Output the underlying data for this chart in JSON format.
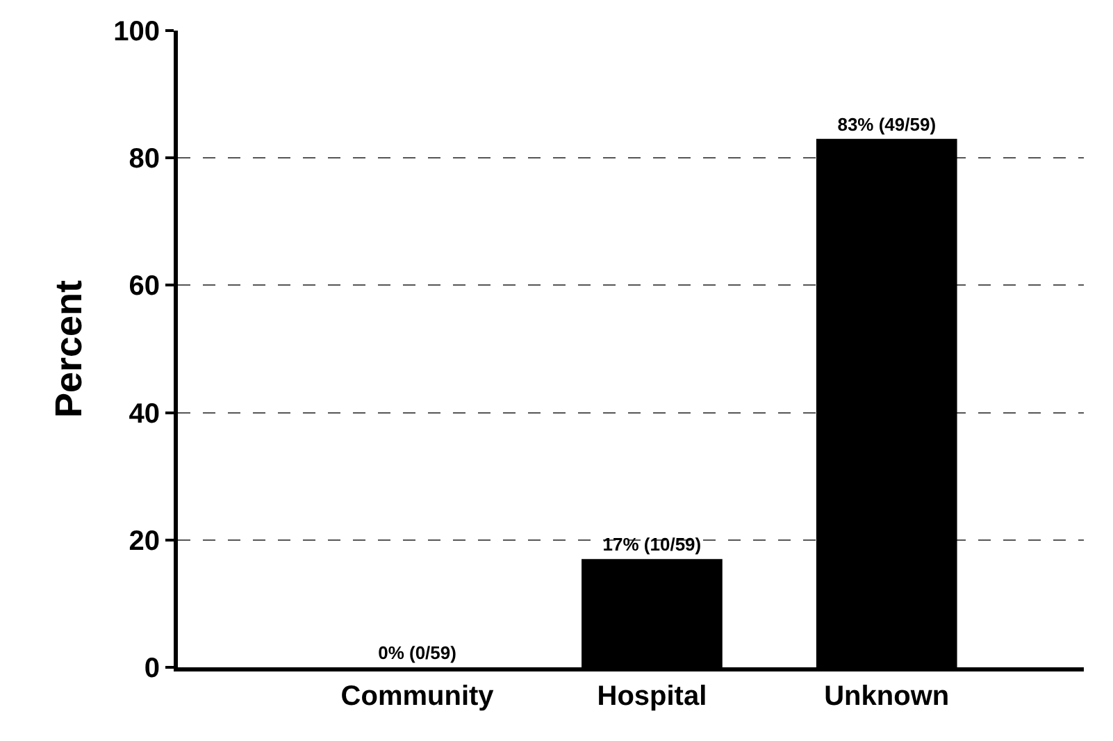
{
  "chart_data": {
    "type": "bar",
    "ylabel": "Percent",
    "categories": [
      "Community",
      "Hospital",
      "Unknown"
    ],
    "values": [
      0,
      17,
      83
    ],
    "color": "#000000",
    "value_labels": [
      "0% (0/59)",
      "17% (10/59)",
      "83% (49/59)"
    ],
    "ylim": [
      0,
      100
    ],
    "yticks": [
      0,
      20,
      40,
      60,
      80,
      100
    ],
    "grid": "y",
    "legend": false
  }
}
